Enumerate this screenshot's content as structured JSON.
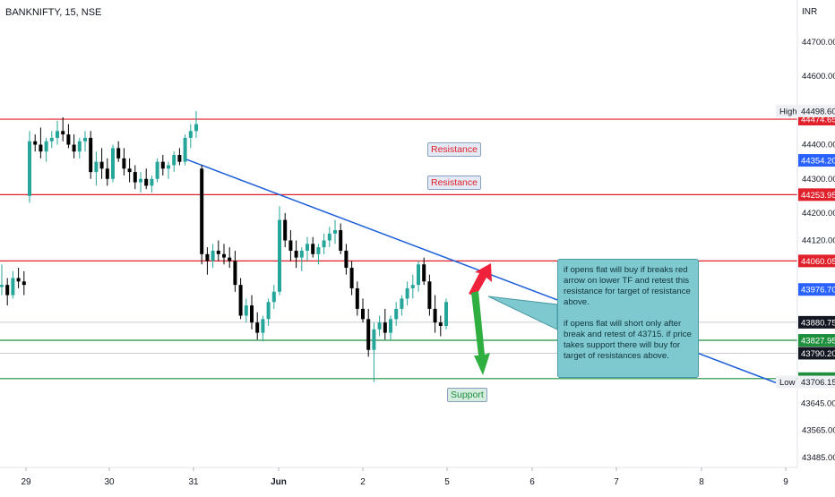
{
  "header": {
    "symbol": "BANKNIFTY, 15, NSE",
    "currency": "INR"
  },
  "chart_data": {
    "type": "candlestick",
    "price_axis": {
      "ticks": [
        "44700.00",
        "44600.00",
        "44400.00",
        "44300.00",
        "44200.00",
        "44120.00",
        "43565.00",
        "43485.00"
      ],
      "tick_values": [
        44700,
        44600,
        44400,
        44300,
        44200,
        44120,
        43565,
        43485
      ],
      "ylim": [
        43440,
        44760
      ]
    },
    "time_axis": {
      "ticks": [
        "29",
        "30",
        "31",
        "Jun",
        "2",
        "5",
        "6",
        "7",
        "8",
        "9"
      ]
    },
    "horizontal_levels": [
      {
        "value": 44474.65,
        "label": "44474.65",
        "color": "#e0202a"
      },
      {
        "value": 44253.95,
        "label": "44253.95",
        "color": "#e0202a"
      },
      {
        "value": 44060.05,
        "label": "44060.05",
        "color": "#e0202a"
      },
      {
        "value": 43827.95,
        "label": "43827.95",
        "color": "#1e8f3d"
      },
      {
        "value": 43715.95,
        "label": "43715.95",
        "color": "#1e8f3d"
      }
    ],
    "price_labels": [
      {
        "value": 44498.6,
        "label": "44498.60",
        "tag": "High",
        "kind": "plain"
      },
      {
        "value": 44354.2,
        "label": "44354.20",
        "kind": "blue"
      },
      {
        "value": 43976.7,
        "label": "43976.70",
        "kind": "blue"
      },
      {
        "value": 43880.75,
        "label": "43880.75",
        "kind": "dark"
      },
      {
        "value": 43790.2,
        "label": "43790.20",
        "kind": "dark"
      },
      {
        "value": 43706.15,
        "label": "43706.15",
        "tag": "Low",
        "kind": "plain"
      },
      {
        "value": 43645.0,
        "label": "43645.00",
        "kind": "axis"
      }
    ],
    "trendline": {
      "from": [
        44360
      ],
      "to": [
        43704
      ],
      "color": "#1e5fd9"
    },
    "candles": [
      [
        43984,
        44050,
        43960,
        43990
      ],
      [
        43990,
        44010,
        43930,
        43960
      ],
      [
        43960,
        44030,
        43950,
        44010
      ],
      [
        44010,
        44040,
        43980,
        44000
      ],
      [
        44000,
        44030,
        43960,
        43990
      ],
      [
        44250,
        44440,
        44230,
        44410
      ],
      [
        44410,
        44430,
        44380,
        44400
      ],
      [
        44400,
        44450,
        44360,
        44380
      ],
      [
        44380,
        44420,
        44350,
        44410
      ],
      [
        44410,
        44440,
        44390,
        44420
      ],
      [
        44420,
        44470,
        44400,
        44440
      ],
      [
        44440,
        44480,
        44410,
        44430
      ],
      [
        44430,
        44460,
        44390,
        44400
      ],
      [
        44400,
        44430,
        44360,
        44380
      ],
      [
        44380,
        44420,
        44360,
        44410
      ],
      [
        44410,
        44440,
        44380,
        44420
      ],
      [
        44420,
        44440,
        44300,
        44320
      ],
      [
        44320,
        44380,
        44280,
        44350
      ],
      [
        44350,
        44390,
        44300,
        44330
      ],
      [
        44330,
        44360,
        44280,
        44300
      ],
      [
        44300,
        44400,
        44290,
        44390
      ],
      [
        44390,
        44410,
        44350,
        44360
      ],
      [
        44360,
        44390,
        44310,
        44330
      ],
      [
        44330,
        44360,
        44290,
        44320
      ],
      [
        44320,
        44340,
        44270,
        44290
      ],
      [
        44290,
        44320,
        44260,
        44300
      ],
      [
        44300,
        44330,
        44270,
        44280
      ],
      [
        44280,
        44310,
        44260,
        44300
      ],
      [
        44300,
        44360,
        44290,
        44350
      ],
      [
        44350,
        44370,
        44310,
        44330
      ],
      [
        44330,
        44350,
        44300,
        44340
      ],
      [
        44340,
        44380,
        44320,
        44370
      ],
      [
        44370,
        44390,
        44340,
        44350
      ],
      [
        44350,
        44430,
        44340,
        44420
      ],
      [
        44420,
        44460,
        44390,
        44440
      ],
      [
        44440,
        44498,
        44420,
        44460
      ],
      [
        44330,
        44340,
        44050,
        44080
      ],
      [
        44080,
        44100,
        44020,
        44060
      ],
      [
        44060,
        44110,
        44040,
        44090
      ],
      [
        44090,
        44120,
        44060,
        44080
      ],
      [
        44080,
        44110,
        44050,
        44070
      ],
      [
        44070,
        44100,
        44040,
        44060
      ],
      [
        44060,
        44090,
        43970,
        43990
      ],
      [
        43990,
        44010,
        43890,
        43900
      ],
      [
        43900,
        43950,
        43880,
        43930
      ],
      [
        43930,
        43960,
        43860,
        43880
      ],
      [
        43880,
        43910,
        43830,
        43850
      ],
      [
        43850,
        43900,
        43825,
        43890
      ],
      [
        43890,
        43950,
        43870,
        43940
      ],
      [
        43940,
        43990,
        43920,
        43970
      ],
      [
        43970,
        44220,
        43960,
        44180
      ],
      [
        44180,
        44200,
        44100,
        44120
      ],
      [
        44120,
        44150,
        44060,
        44090
      ],
      [
        44090,
        44120,
        44040,
        44070
      ],
      [
        44070,
        44100,
        44030,
        44090
      ],
      [
        44090,
        44130,
        44060,
        44110
      ],
      [
        44110,
        44130,
        44070,
        44080
      ],
      [
        44080,
        44110,
        44050,
        44100
      ],
      [
        44100,
        44140,
        44080,
        44120
      ],
      [
        44120,
        44160,
        44100,
        44140
      ],
      [
        44140,
        44180,
        44110,
        44150
      ],
      [
        44150,
        44170,
        44080,
        44090
      ],
      [
        44090,
        44110,
        44020,
        44040
      ],
      [
        44040,
        44060,
        43960,
        43980
      ],
      [
        43980,
        44000,
        43900,
        43920
      ],
      [
        43920,
        43950,
        43880,
        43890
      ],
      [
        43890,
        43920,
        43780,
        43800
      ],
      [
        43800,
        43880,
        43706,
        43860
      ],
      [
        43860,
        43900,
        43840,
        43880
      ],
      [
        43880,
        43920,
        43830,
        43850
      ],
      [
        43850,
        43900,
        43830,
        43890
      ],
      [
        43890,
        43940,
        43870,
        43920
      ],
      [
        43920,
        43960,
        43900,
        43950
      ],
      [
        43950,
        44000,
        43930,
        43980
      ],
      [
        43980,
        44020,
        43950,
        43990
      ],
      [
        43990,
        44060,
        43970,
        44050
      ],
      [
        44050,
        44070,
        43990,
        44000
      ],
      [
        44000,
        44020,
        43900,
        43920
      ],
      [
        43920,
        43960,
        43850,
        43880
      ],
      [
        43880,
        43900,
        43840,
        43870
      ],
      [
        43870,
        43950,
        43860,
        43940
      ]
    ]
  },
  "annotations": {
    "resistance_label": "Resistance",
    "support_label": "Support",
    "note_line1": "if opens flat will buy if breaks red arrow on lower TF and retest this resistance for target of resistance above.",
    "note_line2": "if opens flat will short only after break and retest of 43715. if price takes support there will buy for target of resistances above."
  },
  "colors": {
    "up": "#26a69a",
    "down": "#000000",
    "accent": "#2962ff",
    "resistance": "#e0202a",
    "support": "#1e8f3d",
    "note_bg": "#7ec8cf"
  }
}
